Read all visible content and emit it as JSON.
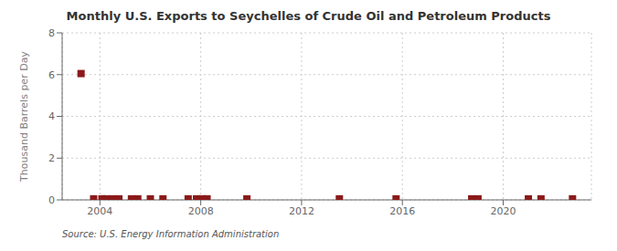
{
  "chart_data": {
    "type": "scatter",
    "title": "Monthly U.S. Exports to Seychelles of Crude Oil and Petroleum Products",
    "ylabel": "Thousand Barrels per Day",
    "annotations": [
      "Source: U.S. Energy Information Administration"
    ],
    "color": "#8b1a1a",
    "marker": "square",
    "grid": true,
    "xlim": [
      2002.5,
      2023.5
    ],
    "xticks": [
      2004,
      2008,
      2012,
      2016,
      2020
    ],
    "ylim": [
      0,
      8
    ],
    "yticks": [
      0,
      2,
      4,
      6,
      8
    ],
    "x": [
      2003.25,
      2003.75,
      2004.08,
      2004.25,
      2004.5,
      2004.75,
      2005.25,
      2005.5,
      2006.0,
      2006.5,
      2007.5,
      2007.83,
      2008.08,
      2008.25,
      2009.83,
      2013.5,
      2015.75,
      2018.75,
      2019.0,
      2021.0,
      2021.5,
      2022.75
    ],
    "values": [
      6.05,
      0.05,
      0.05,
      0.05,
      0.05,
      0.05,
      0.05,
      0.05,
      0.05,
      0.05,
      0.05,
      0.05,
      0.05,
      0.05,
      0.05,
      0.05,
      0.05,
      0.05,
      0.05,
      0.05,
      0.05,
      0.05
    ]
  }
}
